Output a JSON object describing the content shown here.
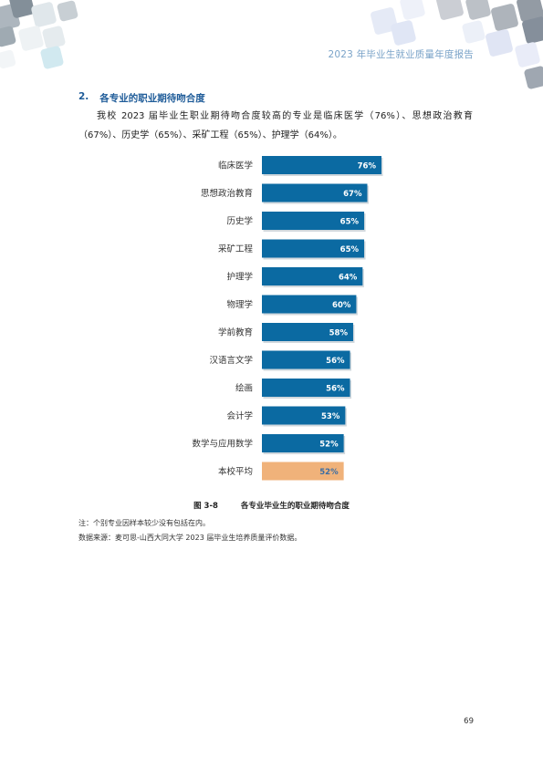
{
  "header": {
    "title": "2023 年毕业生就业质量年度报告"
  },
  "section": {
    "number": "2.",
    "title": "各专业的职业期待吻合度"
  },
  "body": {
    "paragraph": "我校 2023 届毕业生职业期待吻合度较高的专业是临床医学（76%）、思想政治教育（67%）、历史学（65%）、采矿工程（65%）、护理学（64%）。"
  },
  "chart_data": {
    "type": "bar",
    "orientation": "horizontal",
    "categories": [
      "临床医学",
      "思想政治教育",
      "历史学",
      "采矿工程",
      "护理学",
      "物理学",
      "学前教育",
      "汉语言文学",
      "绘画",
      "会计学",
      "数学与应用数学",
      "本校平均"
    ],
    "values": [
      76,
      67,
      65,
      65,
      64,
      60,
      58,
      56,
      56,
      53,
      52,
      52
    ],
    "data_labels": [
      "76%",
      "67%",
      "65%",
      "65%",
      "64%",
      "60%",
      "58%",
      "56%",
      "56%",
      "53%",
      "52%",
      "52%"
    ],
    "value_unit": "%",
    "xlim": [
      0,
      100
    ],
    "grid": false,
    "legend": "none",
    "colors": {
      "bar": "#0b6aa2",
      "highlight": "#f0b27a",
      "highlight_category": "本校平均"
    }
  },
  "figure": {
    "number": "图 3-8",
    "caption": "各专业毕业生的职业期待吻合度"
  },
  "notes": {
    "note1": "注：个别专业因样本较少没有包括在内。",
    "source": "数据来源：麦可思-山西大同大学 2023 届毕业生培养质量评价数据。"
  },
  "footer": {
    "page_number": "69"
  }
}
